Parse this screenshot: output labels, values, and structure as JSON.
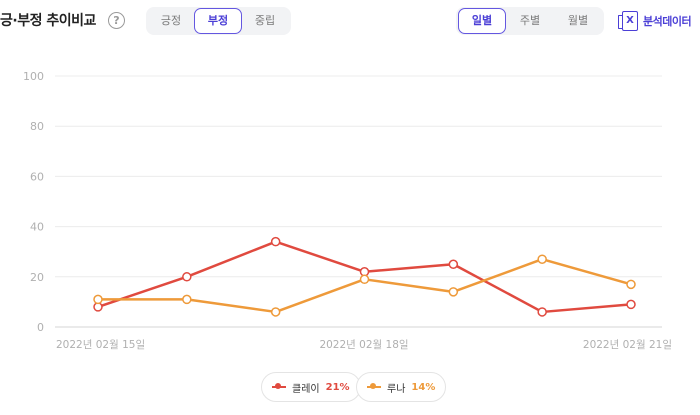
{
  "header": {
    "title": "긍·부정 추이비교",
    "help_icon": "?"
  },
  "sentiment_tabs": {
    "items": [
      "긍정",
      "부정",
      "중립"
    ],
    "selected": "부정"
  },
  "period_tabs": {
    "items": [
      "일별",
      "주별",
      "월별"
    ],
    "selected": "일별"
  },
  "export": {
    "icon": "excel-icon",
    "icon_glyph": "X",
    "label": "분석데이터"
  },
  "chart_data": {
    "type": "line",
    "x": [
      "2022년 02월 15일",
      "2022년 02월 16일",
      "2022년 02월 17일",
      "2022년 02월 18일",
      "2022년 02월 19일",
      "2022년 02월 20일",
      "2022년 02월 21일"
    ],
    "xtick_labels": [
      "2022년 02월 15일",
      "2022년 02월 18일",
      "2022년 02월 21일"
    ],
    "ylim": [
      0,
      100
    ],
    "yticks": [
      0,
      20,
      40,
      60,
      80,
      100
    ],
    "grid": true,
    "legend": "bottom",
    "series": [
      {
        "name": "클레이",
        "percent": "21%",
        "color": "#e04a3f",
        "values": [
          8,
          20,
          34,
          22,
          25,
          6,
          9
        ]
      },
      {
        "name": "루나",
        "percent": "14%",
        "color": "#ee9a3a",
        "values": [
          11,
          11,
          6,
          19,
          14,
          27,
          17
        ]
      }
    ]
  }
}
